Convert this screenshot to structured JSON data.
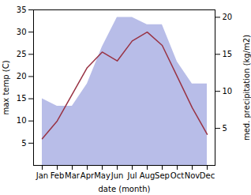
{
  "chart_data": {
    "type": "line",
    "xlabel": "date (month)",
    "ylabel": "max temp (C)",
    "y2label": "med. precipitation (kg/m2)",
    "categories": [
      "Jan",
      "Feb",
      "Mar",
      "Apr",
      "May",
      "Jun",
      "Jul",
      "Aug",
      "Sep",
      "Oct",
      "Nov",
      "Dec"
    ],
    "series": [
      {
        "type": "area",
        "axis": "y2",
        "color": "#b8bde8",
        "values": [
          9,
          8,
          8,
          11,
          16,
          20,
          20,
          19,
          19,
          14,
          11,
          11
        ]
      },
      {
        "type": "line",
        "color": "#993344",
        "values": [
          6,
          10,
          16,
          22,
          25.5,
          23.5,
          28,
          30,
          27,
          20,
          13,
          7
        ]
      }
    ],
    "ylim": [
      0,
      35
    ],
    "yticks": [
      5,
      10,
      15,
      20,
      25,
      30,
      35
    ],
    "y2lim": [
      0,
      21
    ],
    "y2ticks": [
      5,
      10,
      15,
      20
    ],
    "grid": false
  }
}
